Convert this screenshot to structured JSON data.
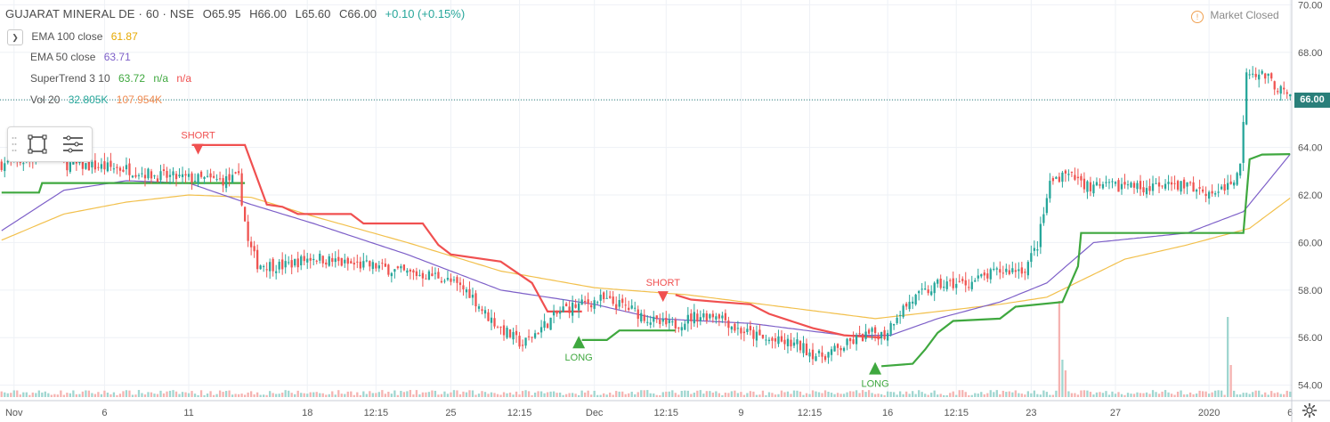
{
  "header": {
    "symbol": "GUJARAT MINERAL DE · 60 · NSE",
    "open": "O65.95",
    "high": "H66.00",
    "low": "L65.60",
    "close": "C66.00",
    "change": "+0.10 (+0.15%)"
  },
  "indicators": {
    "collapse_icon": "chevron-down-icon",
    "ema100": {
      "label": "EMA 100 close",
      "value": "61.87",
      "color": "#f0b400"
    },
    "ema50": {
      "label": "EMA 50 close",
      "value": "63.71",
      "color": "#7d5fc8"
    },
    "supertrend": {
      "label": "SuperTrend 3 10",
      "value": "63.72",
      "na1": "n/a",
      "na2": "n/a",
      "up_color": "#3fa83f",
      "down_color": "#f05050"
    },
    "volume": {
      "label": "Vol 20",
      "value1": "32.805K",
      "value2": "107.954K",
      "color1": "#26a69a",
      "color2": "#ef8a50"
    }
  },
  "market_status": {
    "label": "Market Closed",
    "icon": "clock-icon"
  },
  "last_price": "66.00",
  "colors": {
    "up": "#26a69a",
    "down": "#ef5350",
    "grid": "#f0f3fa",
    "axis_text": "#555555"
  },
  "chart_data": {
    "type": "candlestick",
    "title": "GUJARAT MINERAL DE · 60 · NSE",
    "ylim": [
      53.5,
      70.2
    ],
    "y_ticks": [
      54,
      56,
      58,
      60,
      62,
      64,
      66,
      68,
      70
    ],
    "y_tick_labels": [
      "54.00",
      "56.00",
      "58.00",
      "60.00",
      "62.00",
      "64.00",
      "66.00",
      "68.00",
      "70.00"
    ],
    "x_ticks": [
      {
        "i": 4,
        "label": "Nov"
      },
      {
        "i": 33,
        "label": "6"
      },
      {
        "i": 60,
        "label": "11"
      },
      {
        "i": 98,
        "label": "18"
      },
      {
        "i": 120,
        "label": "12:15"
      },
      {
        "i": 144,
        "label": "25"
      },
      {
        "i": 166,
        "label": "12:15"
      },
      {
        "i": 190,
        "label": "Dec"
      },
      {
        "i": 213,
        "label": "12:15"
      },
      {
        "i": 237,
        "label": "9"
      },
      {
        "i": 259,
        "label": "12:15"
      },
      {
        "i": 284,
        "label": "16"
      },
      {
        "i": 306,
        "label": "12:15"
      },
      {
        "i": 330,
        "label": "23"
      },
      {
        "i": 357,
        "label": "27"
      },
      {
        "i": 387,
        "label": "2020"
      },
      {
        "i": 413,
        "label": "6"
      }
    ],
    "n_bars": 414,
    "close_anchors": [
      [
        0,
        63.3
      ],
      [
        10,
        63.5
      ],
      [
        15,
        64.6
      ],
      [
        20,
        63.3
      ],
      [
        30,
        63.2
      ],
      [
        40,
        63.1
      ],
      [
        50,
        62.8
      ],
      [
        60,
        62.7
      ],
      [
        70,
        62.6
      ],
      [
        76,
        62.7
      ],
      [
        79,
        60.0
      ],
      [
        82,
        59.1
      ],
      [
        90,
        59.0
      ],
      [
        100,
        59.4
      ],
      [
        110,
        59.1
      ],
      [
        120,
        59.0
      ],
      [
        130,
        58.7
      ],
      [
        140,
        58.6
      ],
      [
        150,
        57.9
      ],
      [
        155,
        57.0
      ],
      [
        160,
        56.4
      ],
      [
        167,
        55.7
      ],
      [
        172,
        56.3
      ],
      [
        180,
        57.2
      ],
      [
        186,
        57.4
      ],
      [
        192,
        57.6
      ],
      [
        200,
        57.3
      ],
      [
        206,
        56.9
      ],
      [
        210,
        56.6
      ],
      [
        215,
        56.5
      ],
      [
        222,
        56.9
      ],
      [
        230,
        57.0
      ],
      [
        235,
        56.4
      ],
      [
        245,
        55.9
      ],
      [
        255,
        55.7
      ],
      [
        262,
        55.2
      ],
      [
        268,
        55.5
      ],
      [
        275,
        56.0
      ],
      [
        280,
        56.2
      ],
      [
        283,
        56.1
      ],
      [
        287,
        57.0
      ],
      [
        292,
        57.6
      ],
      [
        300,
        58.2
      ],
      [
        310,
        58.3
      ],
      [
        320,
        58.8
      ],
      [
        328,
        58.9
      ],
      [
        332,
        59.9
      ],
      [
        336,
        62.5
      ],
      [
        340,
        62.9
      ],
      [
        350,
        62.3
      ],
      [
        360,
        62.4
      ],
      [
        370,
        62.3
      ],
      [
        380,
        62.4
      ],
      [
        388,
        62.1
      ],
      [
        394,
        62.4
      ],
      [
        397,
        63.2
      ],
      [
        399,
        67.3
      ],
      [
        405,
        67.0
      ],
      [
        410,
        66.4
      ],
      [
        413,
        66.0
      ]
    ],
    "ema100_anchors": [
      [
        0,
        60.1
      ],
      [
        20,
        61.2
      ],
      [
        40,
        61.7
      ],
      [
        60,
        62.0
      ],
      [
        80,
        61.9
      ],
      [
        100,
        61.1
      ],
      [
        130,
        60.0
      ],
      [
        160,
        58.8
      ],
      [
        190,
        58.1
      ],
      [
        220,
        57.8
      ],
      [
        250,
        57.3
      ],
      [
        280,
        56.8
      ],
      [
        300,
        57.1
      ],
      [
        320,
        57.4
      ],
      [
        335,
        57.7
      ],
      [
        360,
        59.3
      ],
      [
        380,
        59.9
      ],
      [
        400,
        60.6
      ],
      [
        413,
        61.87
      ]
    ],
    "ema50_anchors": [
      [
        0,
        60.5
      ],
      [
        20,
        62.2
      ],
      [
        40,
        62.6
      ],
      [
        60,
        62.5
      ],
      [
        80,
        61.6
      ],
      [
        100,
        60.8
      ],
      [
        130,
        59.5
      ],
      [
        160,
        58.0
      ],
      [
        190,
        57.4
      ],
      [
        210,
        56.8
      ],
      [
        240,
        56.6
      ],
      [
        270,
        56.1
      ],
      [
        285,
        56.1
      ],
      [
        300,
        56.8
      ],
      [
        320,
        57.5
      ],
      [
        335,
        58.3
      ],
      [
        350,
        60.0
      ],
      [
        380,
        60.4
      ],
      [
        398,
        61.3
      ],
      [
        413,
        63.71
      ]
    ],
    "supertrend_segments": [
      {
        "dir": "up",
        "points": [
          [
            0,
            62.1
          ],
          [
            12,
            62.1
          ],
          [
            13,
            62.5
          ],
          [
            78,
            62.5
          ]
        ]
      },
      {
        "dir": "down",
        "points": [
          [
            61,
            64.1
          ],
          [
            78,
            64.1
          ],
          [
            85,
            61.6
          ],
          [
            90,
            61.5
          ],
          [
            95,
            61.2
          ],
          [
            112,
            61.2
          ],
          [
            116,
            60.8
          ],
          [
            135,
            60.8
          ],
          [
            140,
            59.9
          ],
          [
            144,
            59.5
          ],
          [
            160,
            59.2
          ],
          [
            170,
            58.3
          ],
          [
            175,
            57.1
          ],
          [
            186,
            57.1
          ]
        ]
      },
      {
        "dir": "up",
        "points": [
          [
            186,
            55.9
          ],
          [
            194,
            55.9
          ],
          [
            198,
            56.3
          ],
          [
            216,
            56.3
          ]
        ]
      },
      {
        "dir": "down",
        "points": [
          [
            216,
            57.8
          ],
          [
            221,
            57.6
          ],
          [
            230,
            57.5
          ],
          [
            240,
            57.4
          ],
          [
            246,
            57.0
          ],
          [
            260,
            56.4
          ],
          [
            270,
            56.1
          ],
          [
            282,
            56.0
          ]
        ]
      },
      {
        "dir": "up",
        "points": [
          [
            282,
            54.8
          ],
          [
            292,
            54.9
          ],
          [
            296,
            55.5
          ],
          [
            300,
            56.2
          ],
          [
            305,
            56.7
          ],
          [
            320,
            56.8
          ],
          [
            325,
            57.3
          ],
          [
            340,
            57.5
          ],
          [
            345,
            59.0
          ],
          [
            346,
            60.4
          ],
          [
            398,
            60.4
          ],
          [
            400,
            63.5
          ],
          [
            404,
            63.7
          ],
          [
            413,
            63.72
          ]
        ]
      }
    ],
    "signals": [
      {
        "type": "short",
        "i": 63,
        "price": 64.0,
        "label": "SHORT"
      },
      {
        "type": "long",
        "i": 185,
        "price": 56.0,
        "label": "LONG"
      },
      {
        "type": "short",
        "i": 212,
        "price": 57.8,
        "label": "SHORT"
      },
      {
        "type": "long",
        "i": 280,
        "price": 54.9,
        "label": "LONG"
      }
    ],
    "volume_spikes": [
      [
        339,
        0.9
      ],
      [
        340,
        0.35
      ],
      [
        341,
        0.25
      ],
      [
        393,
        0.75
      ],
      [
        394,
        0.3
      ]
    ],
    "last_price": 66.0
  }
}
